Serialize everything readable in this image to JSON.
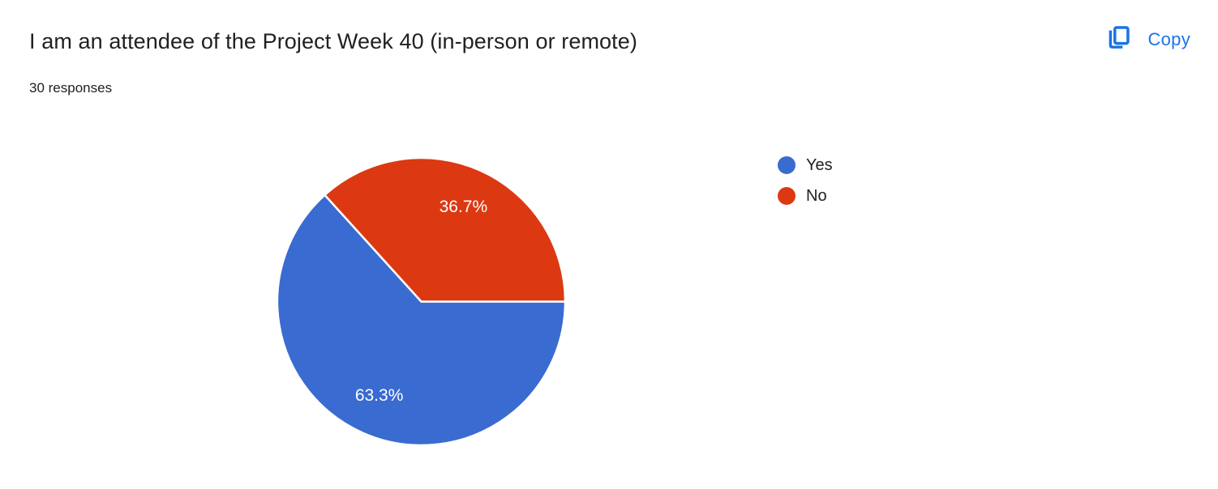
{
  "header": {
    "title": "I am an attendee of the Project Week 40 (in-person or remote)",
    "responses": "30 responses",
    "copy_label": "Copy"
  },
  "icons": {
    "copy": "copy-chart-icon"
  },
  "colors": {
    "accent": "#1a73e8",
    "title_text": "#202124",
    "background": "#ffffff",
    "slice_divider": "#ffffff"
  },
  "chart_data": {
    "type": "pie",
    "title": "I am an attendee of the Project Week 40 (in-person or remote)",
    "subtitle": "30 responses",
    "total_responses": 30,
    "categories": [
      "Yes",
      "No"
    ],
    "values": [
      19,
      11
    ],
    "percentages": [
      63.3,
      36.7
    ],
    "pct_labels": [
      "63.3%",
      "36.7%"
    ],
    "colors": [
      "#3a6bd1",
      "#dc3912"
    ],
    "label_color": "#ffffff",
    "legend_position": "right",
    "start_angle_deg": 0,
    "direction": "clockwise"
  }
}
